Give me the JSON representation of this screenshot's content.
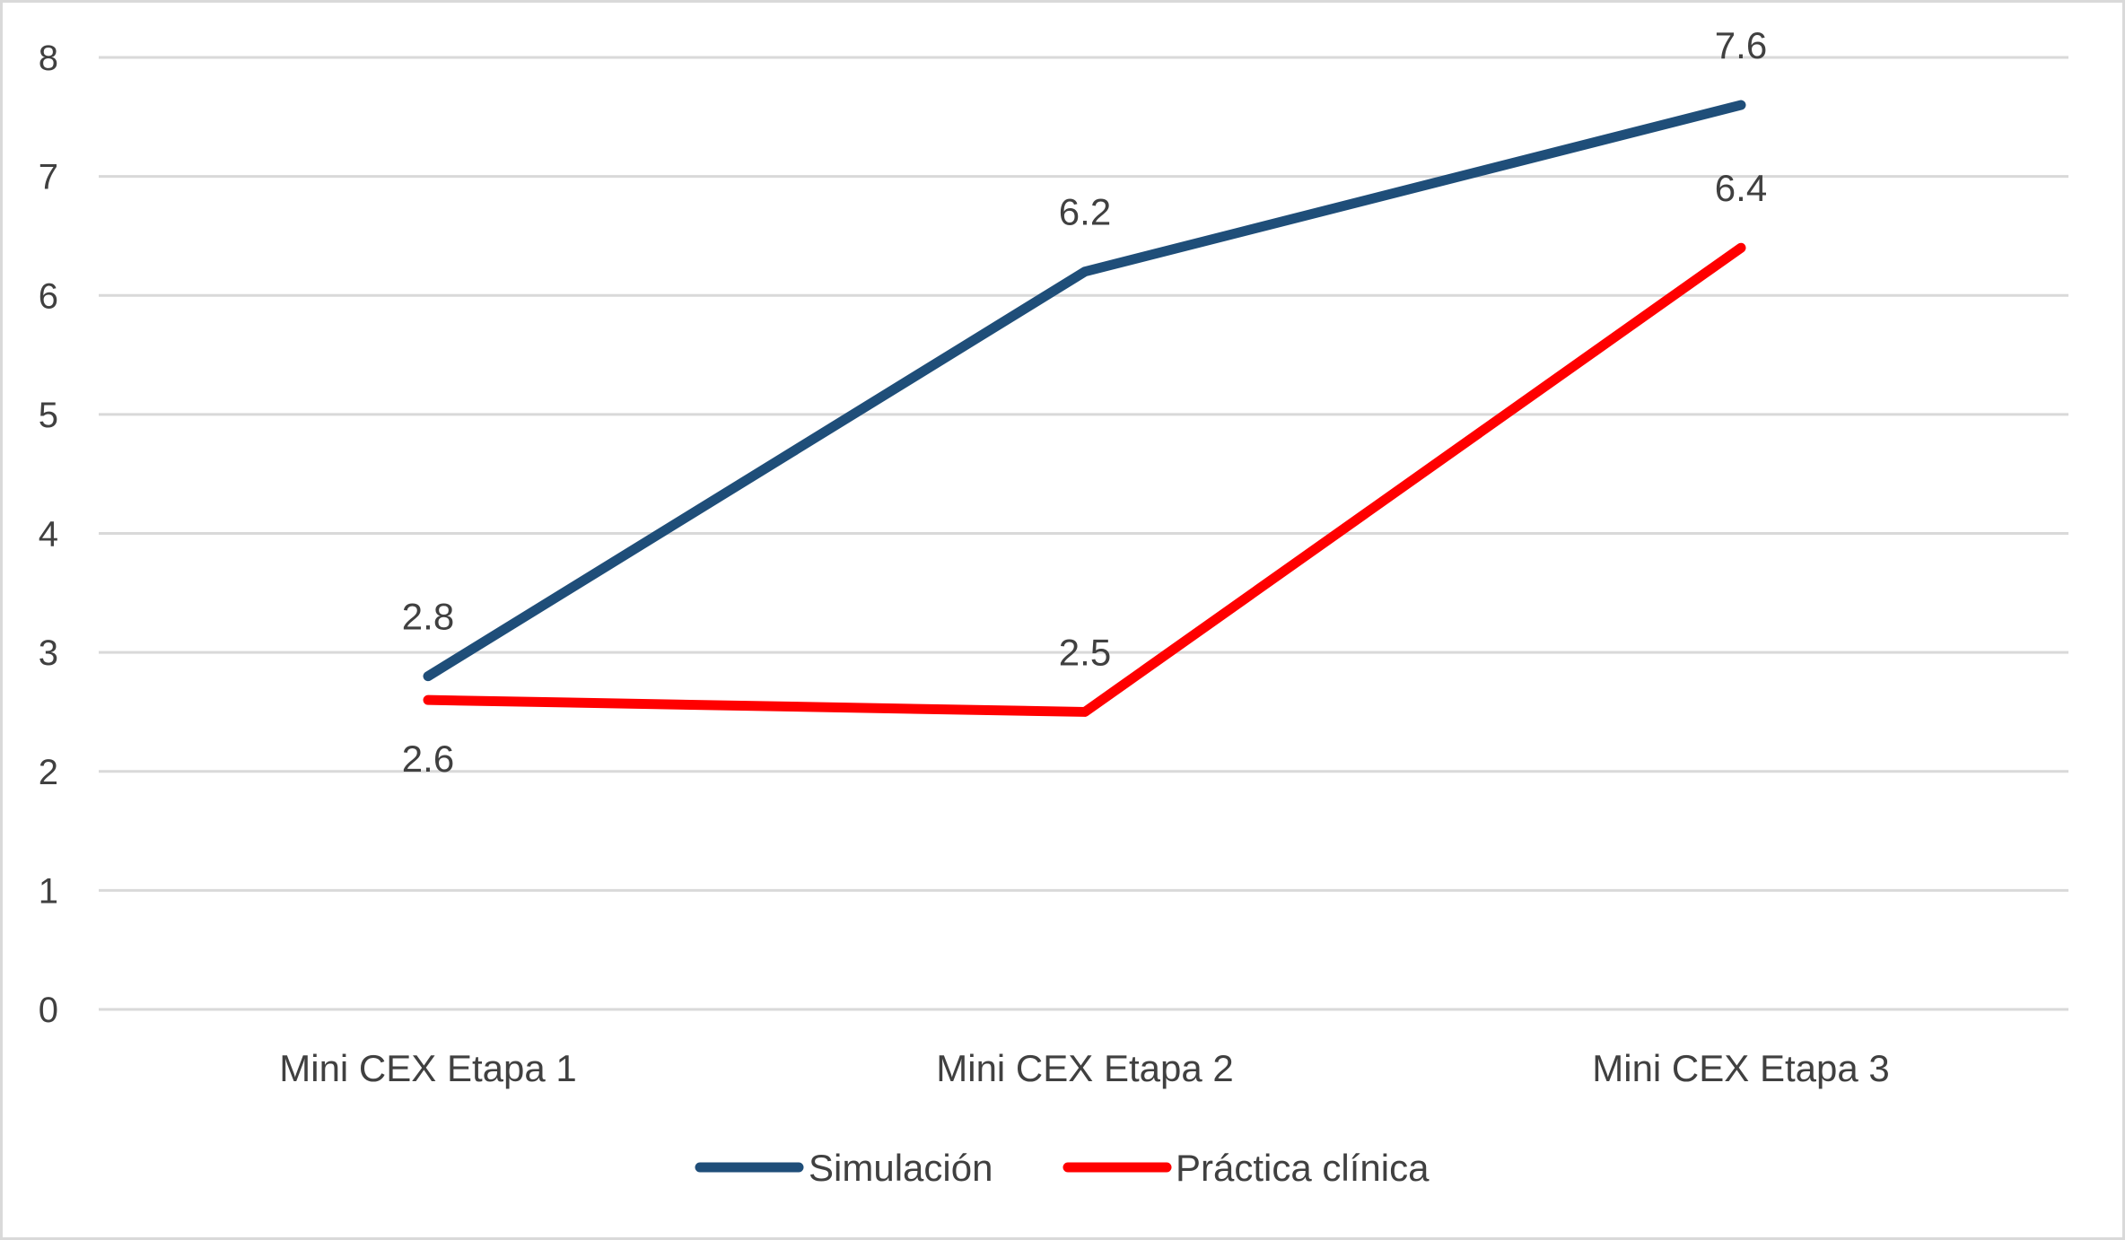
{
  "chart_data": {
    "type": "line",
    "title": "",
    "xlabel": "",
    "ylabel": "",
    "categories": [
      "Mini CEX Etapa 1",
      "Mini CEX Etapa 2",
      "Mini CEX Etapa 3"
    ],
    "ylim": [
      0,
      8
    ],
    "yticks": [
      0,
      1,
      2,
      3,
      4,
      5,
      6,
      7,
      8
    ],
    "grid": true,
    "legend_position": "bottom",
    "series": [
      {
        "name": "Simulación",
        "values": [
          2.8,
          6.2,
          7.6
        ],
        "color": "#1f4e79",
        "labels": [
          "2.8",
          "6.2",
          "7.6"
        ],
        "label_position": "above"
      },
      {
        "name": "Práctica clínica",
        "values": [
          2.6,
          2.5,
          6.4
        ],
        "color": "#ff0000",
        "labels": [
          "2.6",
          "2.5",
          "6.4"
        ],
        "label_position": "mixed"
      }
    ]
  }
}
